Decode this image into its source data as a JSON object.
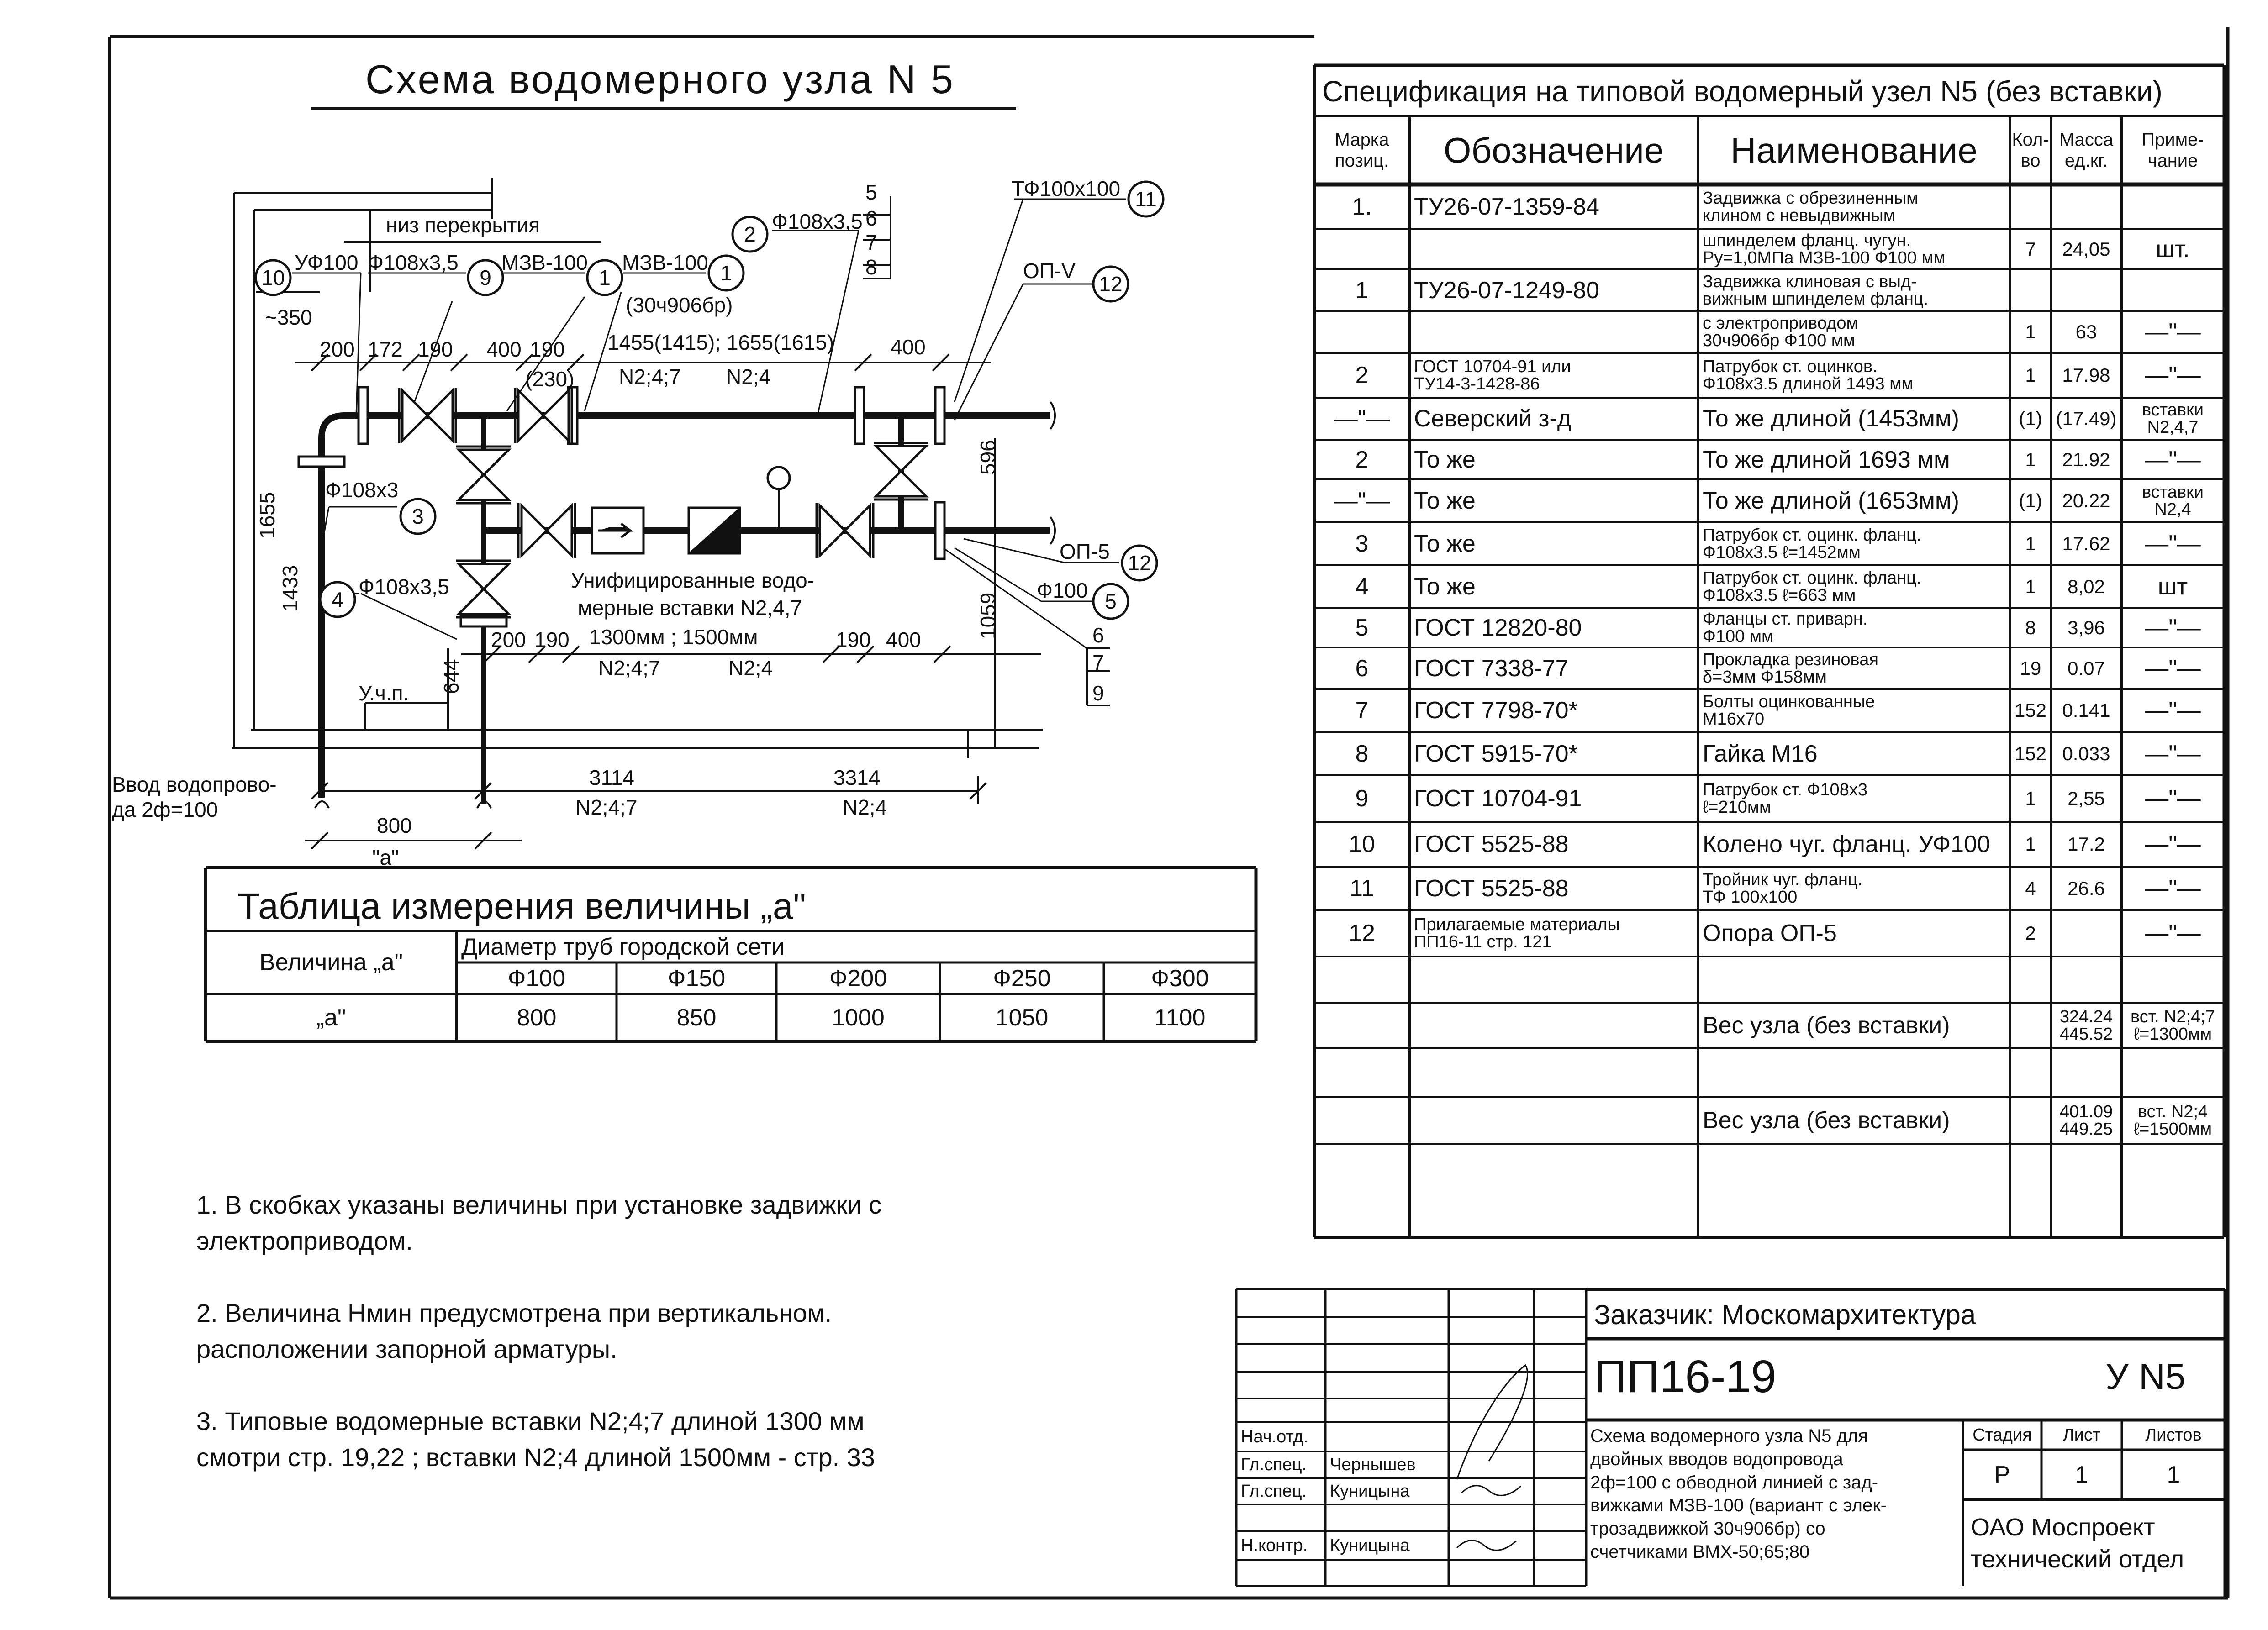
{
  "drawing_title": "Схема водомерного узла N 5",
  "diagram": {
    "labels": [
      "низ перекрытия",
      "УФ100",
      "Ф108х3,5",
      "МЗВ-100",
      "МЗВ-100",
      "(30ч906бр)",
      "Ф108х3,5",
      "5",
      "6",
      "7",
      "8",
      "ТФ100х100",
      "ОП-V",
      "~350",
      "200",
      "172",
      "190",
      "400",
      "190",
      "1455(1415); 1655(1615)",
      "400",
      "N2;4;7",
      "N2;4",
      "(230)",
      "Ф108х3",
      "Ф108х3,5",
      "1655",
      "1433",
      "Унифицированные водо-",
      "мерные вставки N2,4,7",
      "1300мм ; 1500мм",
      "N2;4;7",
      "N2;4",
      "200",
      "190",
      "190",
      "400",
      "ОП-5",
      "Ф100",
      "596",
      "1059",
      "6",
      "7",
      "9",
      "У.ч.п.",
      "644",
      "Ввод водопрово-",
      "да 2ф=100",
      "3114",
      "N2;4;7",
      "3314",
      "N2;4",
      "800",
      "\"а\""
    ],
    "callouts": [
      "10",
      "9",
      "1",
      "1",
      "2",
      "11",
      "12",
      "3",
      "4",
      "12",
      "5"
    ]
  },
  "a_table": {
    "title": "Таблица измерения величины „а\"",
    "row_header": "Величина „а\"",
    "group_header": "Диаметр труб городской сети",
    "diameters": [
      "Ф100",
      "Ф150",
      "Ф200",
      "Ф250",
      "Ф300"
    ],
    "value_label": "„а\"",
    "values": [
      "800",
      "850",
      "1000",
      "1050",
      "1100"
    ]
  },
  "notes": [
    "1. В скобках указаны величины при установке задвижки с\n    электроприводом.",
    "2. Величина Нмин предусмотрена при вертикальном.\n    расположении запорной арматуры.",
    "3. Типовые водомерные вставки N2;4;7 длиной 1300 мм\n    смотри стр. 19,22  ; вставки N2;4 длиной 1500мм - стр. 33"
  ],
  "spec": {
    "title": "Спецификация на типовой водомерный узел N5 (без вставки)",
    "headers": {
      "mark": "Марка\nпозиц.",
      "designation": "Обозначение",
      "name": "Наименование",
      "qty": "Кол-\nво",
      "mass": "Масса\nед.кг.",
      "note": "Приме-\nчание"
    },
    "rows": [
      {
        "mark": "1.",
        "designation": "ТУ26-07-1359-84",
        "name": "Задвижка с обрезиненным\nклином с невыдвижным",
        "qty": "",
        "mass": "",
        "note": ""
      },
      {
        "mark": "",
        "designation": "",
        "name": "шпинделем фланц. чугун.\nРу=1,0МПа МЗВ-100  Ф100 мм",
        "qty": "7",
        "mass": "24,05",
        "note": "шт."
      },
      {
        "mark": "1",
        "designation": "ТУ26-07-1249-80",
        "name": "Задвижка клиновая с выд-\nвижным шпинделем фланц.",
        "qty": "",
        "mass": "",
        "note": ""
      },
      {
        "mark": "",
        "designation": "",
        "name": "с электроприводом\n30ч906бр     Ф100 мм",
        "qty": "1",
        "mass": "63",
        "note": "—\"—"
      },
      {
        "mark": "2",
        "designation": "ГОСТ 10704-91 или\nТУ14-3-1428-86",
        "name": "Патрубок ст. оцинков.\nФ108х3.5 длиной 1493 мм",
        "qty": "1",
        "mass": "17.98",
        "note": "—\"—"
      },
      {
        "mark": "—\"—",
        "designation": "Северский з-д",
        "name": "То же длиной (1453мм)",
        "qty": "(1)",
        "mass": "(17.49)",
        "note": "вставки\nN2,4,7"
      },
      {
        "mark": "2",
        "designation": "То же",
        "name": "То же длиной 1693 мм",
        "qty": "1",
        "mass": "21.92",
        "note": "—\"—"
      },
      {
        "mark": "—\"—",
        "designation": "То же",
        "name": "То же длиной (1653мм)",
        "qty": "(1)",
        "mass": "20.22",
        "note": "вставки\nN2,4"
      },
      {
        "mark": "3",
        "designation": "То же",
        "name": "Патрубок ст. оцинк. фланц.\nФ108х3.5   ℓ=1452мм",
        "qty": "1",
        "mass": "17.62",
        "note": "—\"—"
      },
      {
        "mark": "4",
        "designation": "То же",
        "name": "Патрубок ст. оцинк. фланц.\nФ108х3.5   ℓ=663 мм",
        "qty": "1",
        "mass": "8,02",
        "note": "шт"
      },
      {
        "mark": "5",
        "designation": "ГОСТ 12820-80",
        "name": "Фланцы ст. приварн.\nФ100 мм",
        "qty": "8",
        "mass": "3,96",
        "note": "—\"—"
      },
      {
        "mark": "6",
        "designation": "ГОСТ 7338-77",
        "name": "Прокладка резиновая\nδ=3мм      Ф158мм",
        "qty": "19",
        "mass": "0.07",
        "note": "—\"—"
      },
      {
        "mark": "7",
        "designation": "ГОСТ 7798-70*",
        "name": "Болты оцинкованные\nМ16х70",
        "qty": "152",
        "mass": "0.141",
        "note": "—\"—"
      },
      {
        "mark": "8",
        "designation": "ГОСТ 5915-70*",
        "name": "Гайка  М16",
        "qty": "152",
        "mass": "0.033",
        "note": "—\"—"
      },
      {
        "mark": "9",
        "designation": "ГОСТ 10704-91",
        "name": "Патрубок ст. Ф108х3\nℓ=210мм",
        "qty": "1",
        "mass": "2,55",
        "note": "—\"—"
      },
      {
        "mark": "10",
        "designation": "ГОСТ 5525-88",
        "name": "Колено чуг. фланц. УФ100",
        "qty": "1",
        "mass": "17.2",
        "note": "—\"—"
      },
      {
        "mark": "11",
        "designation": "ГОСТ 5525-88",
        "name": "Тройник чуг. фланц.\nТФ 100х100",
        "qty": "4",
        "mass": "26.6",
        "note": "—\"—"
      },
      {
        "mark": "12",
        "designation": "Прилагаемые материалы\nПП16-11  стр. 121",
        "name": "Опора     ОП-5",
        "qty": "2",
        "mass": "",
        "note": "—\"—"
      },
      {
        "mark": "",
        "designation": "",
        "name": "",
        "qty": "",
        "mass": "",
        "note": ""
      },
      {
        "mark": "",
        "designation": "",
        "name": "Вес узла (без вставки)",
        "qty": "",
        "mass": "324.24\n445.52",
        "note": "вст. N2;4;7\nℓ=1300мм"
      },
      {
        "mark": "",
        "designation": "",
        "name": "",
        "qty": "",
        "mass": "",
        "note": ""
      },
      {
        "mark": "",
        "designation": "",
        "name": "Вес узла (без вставки)",
        "qty": "",
        "mass": "401.09\n449.25",
        "note": "вст. N2;4\nℓ=1500мм"
      },
      {
        "mark": "",
        "designation": "",
        "name": "",
        "qty": "",
        "mass": "",
        "note": ""
      }
    ]
  },
  "title_block": {
    "customer": "Заказчик: Москомархитектура",
    "code": "ПП16-19",
    "sheet_code": "У N5",
    "description": "Схема водомерного узла N5 для\nдвойных вводов водопровода\n2ф=100 с обводной линией с зад-\nвижками МЗВ-100 (вариант с элек-\nтрозадвижкой 30ч906бр) со\nсчетчиками ВМХ-50;65;80",
    "stage_headers": [
      "Стадия",
      "Лист",
      "Листов"
    ],
    "stage_values": [
      "Р",
      "1",
      "1"
    ],
    "organization": "ОАО Моспроект\nтехнический отдел",
    "signatures": [
      {
        "role": "Нач.отд.",
        "name": ""
      },
      {
        "role": "Гл.спец.",
        "name": "Чернышев"
      },
      {
        "role": "Гл.спец.",
        "name": "Куницына"
      },
      {
        "role": "Н.контр.",
        "name": "Куницына"
      }
    ]
  }
}
